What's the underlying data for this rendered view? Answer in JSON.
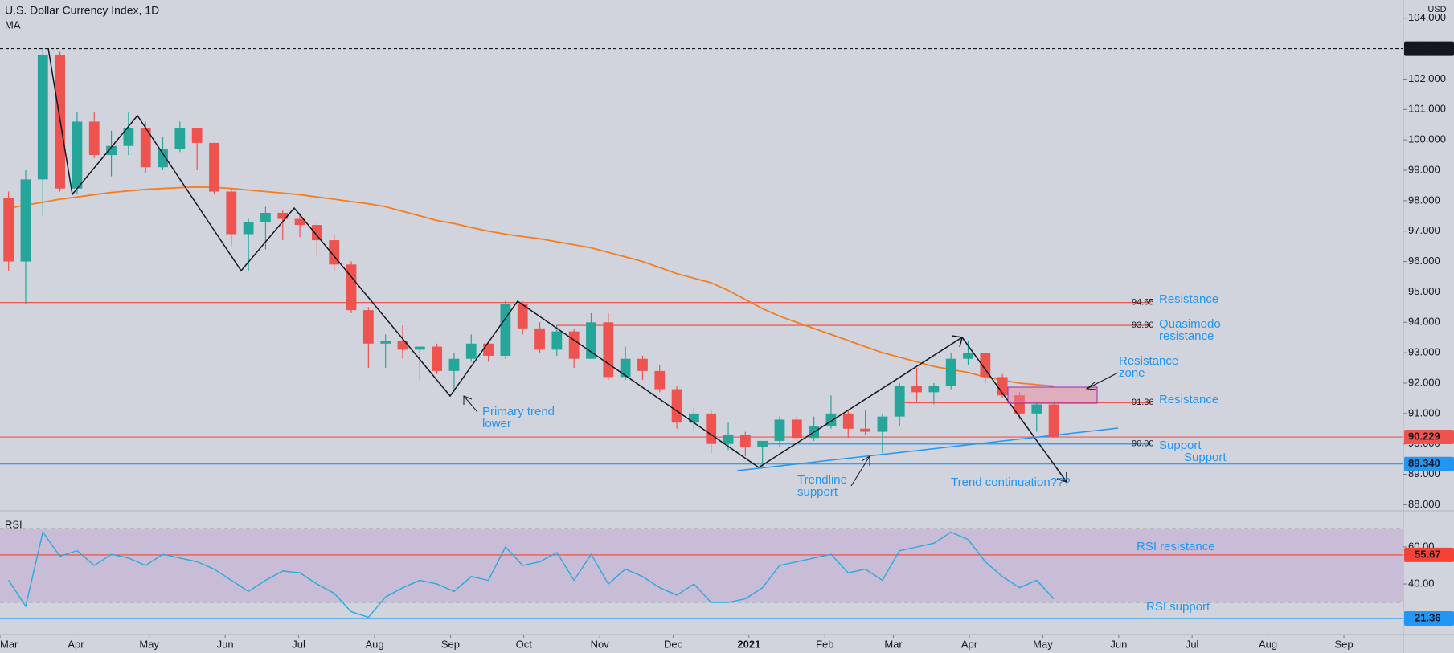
{
  "chart_data": {
    "type": "candlestick",
    "title": "U.S. Dollar Currency Index, 1D",
    "indicator": "MA",
    "axis_unit": "USD",
    "categories": [
      null,
      null,
      null,
      null,
      null,
      null,
      null,
      null,
      null,
      null,
      null,
      null,
      null,
      null,
      null,
      null,
      null,
      null,
      null,
      null,
      null,
      null,
      null,
      null,
      null,
      null,
      null,
      null,
      null,
      null,
      null,
      null,
      null,
      null,
      null,
      null,
      null,
      null,
      null,
      null,
      null,
      null,
      null,
      null,
      null,
      null,
      null,
      null,
      null,
      null,
      null,
      null,
      null,
      null,
      null,
      null,
      null,
      null,
      null,
      null,
      null,
      null
    ],
    "xlim": [
      -0.5,
      81.4
    ],
    "xticks": [
      {
        "value": -0.5,
        "label": "Mar"
      },
      {
        "value": 3.93,
        "label": "Apr"
      },
      {
        "value": 8.21,
        "label": "May"
      },
      {
        "value": 12.64,
        "label": "Jun"
      },
      {
        "value": 16.93,
        "label": "Jul"
      },
      {
        "value": 21.36,
        "label": "Aug"
      },
      {
        "value": 25.79,
        "label": "Sep"
      },
      {
        "value": 30.07,
        "label": "Oct"
      },
      {
        "value": 34.5,
        "label": "Nov"
      },
      {
        "value": 38.79,
        "label": "Dec"
      },
      {
        "value": 43.21,
        "label": "2021"
      },
      {
        "value": 47.64,
        "label": "Feb"
      },
      {
        "value": 51.64,
        "label": "Mar"
      },
      {
        "value": 56.07,
        "label": "Apr"
      },
      {
        "value": 60.36,
        "label": "May"
      },
      {
        "value": 64.79,
        "label": "Jun"
      },
      {
        "value": 69.07,
        "label": "Jul"
      },
      {
        "value": 73.5,
        "label": "Aug"
      },
      {
        "value": 77.93,
        "label": "Sep"
      }
    ],
    "ylim": [
      87.8,
      104.6
    ],
    "yticks": [
      {
        "value": 88,
        "label": "88.000"
      },
      {
        "value": 89,
        "label": "89.000"
      },
      {
        "value": 90,
        "label": "90.000"
      },
      {
        "value": 91,
        "label": "91.000"
      },
      {
        "value": 92,
        "label": "92.000"
      },
      {
        "value": 93,
        "label": "93.000"
      },
      {
        "value": 94,
        "label": "94.000"
      },
      {
        "value": 95,
        "label": "95.000"
      },
      {
        "value": 96,
        "label": "96.000"
      },
      {
        "value": 97,
        "label": "97.000"
      },
      {
        "value": 98,
        "label": "98.000"
      },
      {
        "value": 99,
        "label": "99.000"
      },
      {
        "value": 100,
        "label": "100.000"
      },
      {
        "value": 101,
        "label": "101.000"
      },
      {
        "value": 102,
        "label": "102.000"
      },
      {
        "value": 104,
        "label": "104.000"
      }
    ],
    "up_color": "#26a69a",
    "down_color": "#ef5350",
    "open": [
      98.1,
      96.0,
      98.7,
      102.8,
      98.4,
      100.6,
      99.5,
      99.8,
      100.4,
      99.1,
      99.7,
      100.4,
      99.9,
      98.3,
      96.9,
      97.3,
      97.6,
      97.4,
      97.2,
      96.7,
      95.9,
      94.4,
      93.3,
      93.4,
      93.1,
      93.2,
      92.4,
      92.8,
      93.3,
      92.9,
      94.6,
      93.8,
      93.1,
      93.7,
      92.8,
      94.0,
      92.2,
      92.8,
      92.4,
      91.8,
      90.7,
      91.0,
      90.0,
      90.3,
      89.9,
      90.1,
      90.8,
      90.2,
      90.6,
      91.0,
      90.5,
      90.4,
      90.9,
      91.9,
      91.7,
      91.9,
      92.8,
      93.0,
      92.2,
      91.6,
      91.0,
      91.3
    ],
    "high": [
      98.3,
      99.0,
      103.0,
      102.9,
      100.9,
      100.9,
      100.3,
      100.9,
      100.6,
      100.1,
      100.6,
      100.4,
      99.9,
      98.4,
      97.4,
      97.8,
      97.7,
      97.6,
      97.3,
      96.9,
      96.0,
      94.5,
      93.6,
      93.9,
      93.2,
      93.3,
      93.0,
      93.6,
      93.4,
      94.7,
      94.7,
      94.0,
      93.9,
      93.8,
      94.3,
      94.3,
      93.2,
      92.9,
      92.6,
      91.9,
      91.2,
      91.1,
      90.7,
      90.4,
      90.1,
      90.9,
      90.9,
      90.9,
      91.6,
      91.1,
      91.1,
      91.0,
      92.0,
      92.5,
      92.0,
      93.0,
      93.4,
      93.0,
      92.3,
      91.7,
      91.4,
      91.4
    ],
    "low": [
      95.7,
      94.6,
      97.5,
      98.3,
      98.2,
      99.4,
      98.8,
      99.5,
      98.9,
      99.0,
      99.6,
      99.0,
      98.2,
      96.5,
      95.7,
      96.4,
      96.7,
      96.8,
      96.2,
      95.7,
      94.3,
      92.5,
      92.5,
      92.8,
      92.1,
      92.3,
      91.7,
      92.7,
      92.7,
      92.8,
      93.6,
      93.0,
      92.9,
      92.5,
      92.8,
      92.1,
      92.1,
      92.1,
      91.7,
      90.5,
      90.4,
      89.7,
      89.8,
      89.6,
      89.2,
      89.9,
      90.1,
      90.1,
      90.5,
      90.2,
      90.3,
      89.7,
      90.6,
      91.4,
      91.3,
      91.8,
      92.6,
      92.0,
      91.5,
      90.8,
      90.4,
      90.2
    ],
    "close": [
      96.0,
      98.7,
      102.8,
      98.4,
      100.6,
      99.5,
      99.8,
      100.4,
      99.1,
      99.7,
      100.4,
      99.9,
      98.3,
      96.9,
      97.3,
      97.6,
      97.4,
      97.2,
      96.7,
      95.9,
      94.4,
      93.3,
      93.4,
      93.1,
      93.2,
      92.4,
      92.8,
      93.3,
      92.9,
      94.6,
      93.8,
      93.1,
      93.7,
      92.8,
      94.0,
      92.2,
      92.8,
      92.4,
      91.8,
      90.7,
      91.0,
      90.0,
      90.3,
      89.9,
      90.1,
      90.8,
      90.2,
      90.6,
      91.0,
      90.5,
      90.4,
      90.9,
      91.9,
      91.7,
      91.9,
      92.8,
      93.0,
      92.2,
      91.6,
      91.0,
      91.3,
      90.229
    ],
    "ma": {
      "color": "#f57c1f",
      "values": [
        97.75,
        97.85,
        97.95,
        98.05,
        98.12,
        98.2,
        98.27,
        98.32,
        98.37,
        98.4,
        98.43,
        98.45,
        98.44,
        98.4,
        98.35,
        98.3,
        98.25,
        98.2,
        98.12,
        98.05,
        97.97,
        97.9,
        97.8,
        97.65,
        97.5,
        97.35,
        97.25,
        97.12,
        97.0,
        96.9,
        96.82,
        96.75,
        96.65,
        96.55,
        96.45,
        96.3,
        96.15,
        96.0,
        95.8,
        95.6,
        95.45,
        95.3,
        95.05,
        94.75,
        94.45,
        94.2,
        94.0,
        93.8,
        93.6,
        93.4,
        93.2,
        93.0,
        92.85,
        92.7,
        92.55,
        92.45,
        92.35,
        92.2,
        92.1,
        92.0,
        91.95,
        91.9
      ]
    },
    "price_tags": [
      {
        "value": 103,
        "label": "103.000",
        "color": "#131722",
        "dashed": true
      },
      {
        "value": 90.229,
        "label": "90.229",
        "color": "#ef5350",
        "dashed": false
      },
      {
        "value": 89.34,
        "label": "89.340",
        "color": "#2196f3",
        "dashed": false
      }
    ],
    "levels": [
      {
        "value": 94.65,
        "label": "94.65",
        "color": "#f44336"
      },
      {
        "value": 93.9,
        "label": "93.90",
        "color": "#f44336"
      },
      {
        "value": 91.36,
        "label": "91.36",
        "color": "#f44336"
      },
      {
        "value": 90,
        "label": "90.00",
        "color": "#2196f3"
      }
    ],
    "annotations": [
      [
        "Resistance"
      ],
      [
        "Quasimodo",
        "resistance"
      ],
      [
        "Resistance",
        "zone"
      ],
      [
        "Resistance"
      ],
      [
        "Support"
      ],
      [
        "Support"
      ],
      [
        "Primary trend",
        "lower"
      ],
      [
        "Trendline",
        "support"
      ],
      [
        "Trend continuation???"
      ],
      [
        "RSI resistance"
      ],
      [
        "RSI support"
      ]
    ],
    "rsi": {
      "title": "RSI",
      "color": "#29a9e1",
      "ylim": [
        12.7,
        79.5
      ],
      "band": [
        30,
        70
      ],
      "yticks": [
        {
          "value": 40,
          "label": "40.00"
        },
        {
          "value": 60,
          "label": "60.00"
        }
      ],
      "values": [
        42,
        28,
        68,
        55,
        58,
        50,
        56,
        54,
        50,
        56,
        54,
        52,
        48,
        42,
        36,
        42,
        47,
        46,
        40,
        35,
        25,
        22,
        33,
        38,
        42,
        40,
        36,
        44,
        42,
        60,
        50,
        52,
        57,
        42,
        56,
        40,
        48,
        44,
        38,
        34,
        40,
        30,
        30,
        32,
        38,
        50,
        52,
        54,
        56,
        46,
        48,
        42,
        58,
        60,
        62,
        68,
        64,
        52,
        44,
        38,
        42,
        32
      ],
      "levels": [
        {
          "value": 55.67,
          "label": "55.67",
          "color": "#f44336"
        },
        {
          "value": 21.36,
          "label": "21.36",
          "color": "#2196f3"
        }
      ]
    }
  }
}
